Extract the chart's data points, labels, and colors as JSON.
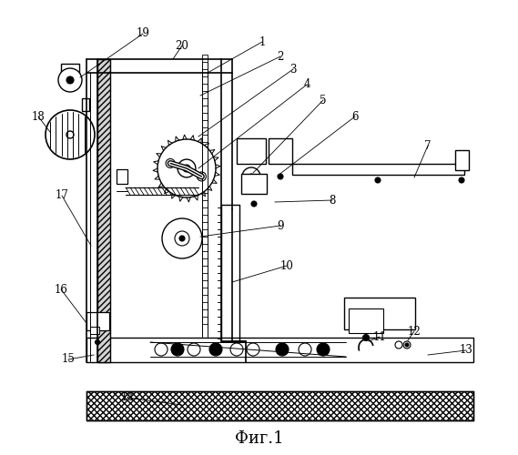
{
  "title": "Фиг.1",
  "title_fontsize": 13,
  "background_color": "#ffffff",
  "line_color": "#000000",
  "fig_width": 5.69,
  "fig_height": 5.0,
  "dpi": 100
}
